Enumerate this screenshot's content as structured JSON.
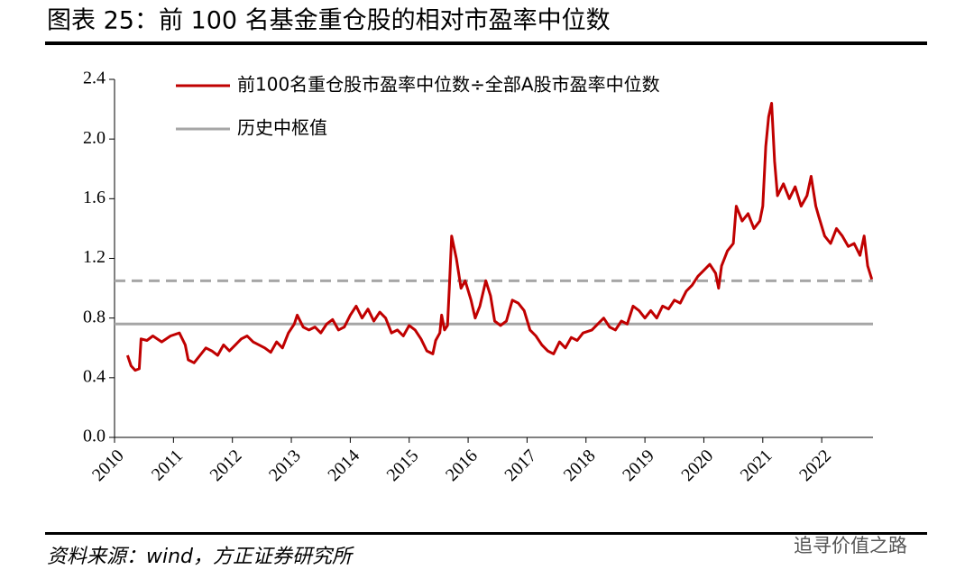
{
  "chart_data": {
    "type": "line",
    "title": "图表 25：前 100 名基金重仓股的相对市盈率中位数",
    "source": "资料来源：wind，方正证券研究所",
    "watermark": "追寻价值之路",
    "xlim": [
      2010,
      2022.87
    ],
    "xticks": [
      2010,
      2011,
      2012,
      2013,
      2014,
      2015,
      2016,
      2017,
      2018,
      2019,
      2020,
      2021,
      2022
    ],
    "ylim": [
      0,
      2.4
    ],
    "yticks": [
      {
        "value": 0,
        "label": "0.0"
      },
      0.4,
      0.8,
      1.2,
      1.6,
      {
        "value": 2,
        "label": "2.0"
      },
      2.4
    ],
    "x": [
      2010.22,
      2010.28,
      2010.35,
      2010.42,
      2010.45,
      2010.55,
      2010.65,
      2010.8,
      2010.95,
      2011.1,
      2011.2,
      2011.25,
      2011.35,
      2011.45,
      2011.55,
      2011.65,
      2011.75,
      2011.85,
      2011.95,
      2012.05,
      2012.15,
      2012.25,
      2012.35,
      2012.45,
      2012.55,
      2012.65,
      2012.75,
      2012.85,
      2012.95,
      2013.05,
      2013.1,
      2013.2,
      2013.3,
      2013.4,
      2013.5,
      2013.6,
      2013.7,
      2013.8,
      2013.9,
      2014.0,
      2014.1,
      2014.2,
      2014.3,
      2014.4,
      2014.5,
      2014.6,
      2014.7,
      2014.8,
      2014.9,
      2015.0,
      2015.1,
      2015.2,
      2015.3,
      2015.4,
      2015.45,
      2015.52,
      2015.55,
      2015.6,
      2015.65,
      2015.68,
      2015.72,
      2015.8,
      2015.88,
      2015.95,
      2016.05,
      2016.12,
      2016.2,
      2016.3,
      2016.38,
      2016.45,
      2016.55,
      2016.65,
      2016.75,
      2016.85,
      2016.95,
      2017.05,
      2017.15,
      2017.25,
      2017.35,
      2017.45,
      2017.55,
      2017.65,
      2017.75,
      2017.85,
      2017.95,
      2018.1,
      2018.2,
      2018.3,
      2018.4,
      2018.5,
      2018.6,
      2018.7,
      2018.8,
      2018.9,
      2019.0,
      2019.1,
      2019.2,
      2019.3,
      2019.4,
      2019.5,
      2019.6,
      2019.7,
      2019.8,
      2019.9,
      2020.0,
      2020.1,
      2020.2,
      2020.25,
      2020.3,
      2020.4,
      2020.5,
      2020.55,
      2020.65,
      2020.75,
      2020.85,
      2020.95,
      2021.0,
      2021.05,
      2021.1,
      2021.15,
      2021.2,
      2021.25,
      2021.35,
      2021.45,
      2021.55,
      2021.65,
      2021.75,
      2021.82,
      2021.9,
      2021.95,
      2022.05,
      2022.15,
      2022.25,
      2022.35,
      2022.45,
      2022.55,
      2022.65,
      2022.72,
      2022.78,
      2022.85
    ],
    "series": [
      {
        "name": "前100名重仓股市盈率中位数÷全部A股市盈率中位数",
        "color": "#c00000",
        "values": [
          0.55,
          0.48,
          0.45,
          0.46,
          0.66,
          0.65,
          0.68,
          0.64,
          0.68,
          0.7,
          0.62,
          0.52,
          0.5,
          0.55,
          0.6,
          0.58,
          0.55,
          0.62,
          0.58,
          0.62,
          0.66,
          0.68,
          0.64,
          0.62,
          0.6,
          0.57,
          0.64,
          0.6,
          0.7,
          0.76,
          0.82,
          0.74,
          0.72,
          0.74,
          0.7,
          0.76,
          0.79,
          0.72,
          0.74,
          0.82,
          0.88,
          0.8,
          0.86,
          0.78,
          0.84,
          0.8,
          0.7,
          0.72,
          0.68,
          0.75,
          0.72,
          0.66,
          0.58,
          0.56,
          0.65,
          0.7,
          0.82,
          0.72,
          0.75,
          1.0,
          1.35,
          1.2,
          1.0,
          1.05,
          0.92,
          0.8,
          0.88,
          1.05,
          0.95,
          0.78,
          0.75,
          0.78,
          0.92,
          0.9,
          0.85,
          0.72,
          0.68,
          0.62,
          0.58,
          0.56,
          0.64,
          0.6,
          0.67,
          0.65,
          0.7,
          0.72,
          0.76,
          0.8,
          0.74,
          0.72,
          0.78,
          0.76,
          0.88,
          0.85,
          0.8,
          0.85,
          0.8,
          0.88,
          0.86,
          0.92,
          0.9,
          0.98,
          1.02,
          1.08,
          1.12,
          1.16,
          1.1,
          1.0,
          1.15,
          1.25,
          1.3,
          1.55,
          1.45,
          1.5,
          1.4,
          1.45,
          1.55,
          1.95,
          2.15,
          2.24,
          1.85,
          1.62,
          1.7,
          1.6,
          1.68,
          1.55,
          1.62,
          1.75,
          1.55,
          1.48,
          1.35,
          1.3,
          1.4,
          1.35,
          1.28,
          1.3,
          1.22,
          1.35,
          1.15,
          1.06
        ]
      }
    ],
    "hlines": [
      {
        "value": 0.76,
        "name": "历史中枢值",
        "color": "#a6a6a6",
        "style": "solid"
      },
      {
        "value": 1.05,
        "color": "#a6a6a6",
        "style": "dashed"
      }
    ],
    "legend": "upper left"
  }
}
